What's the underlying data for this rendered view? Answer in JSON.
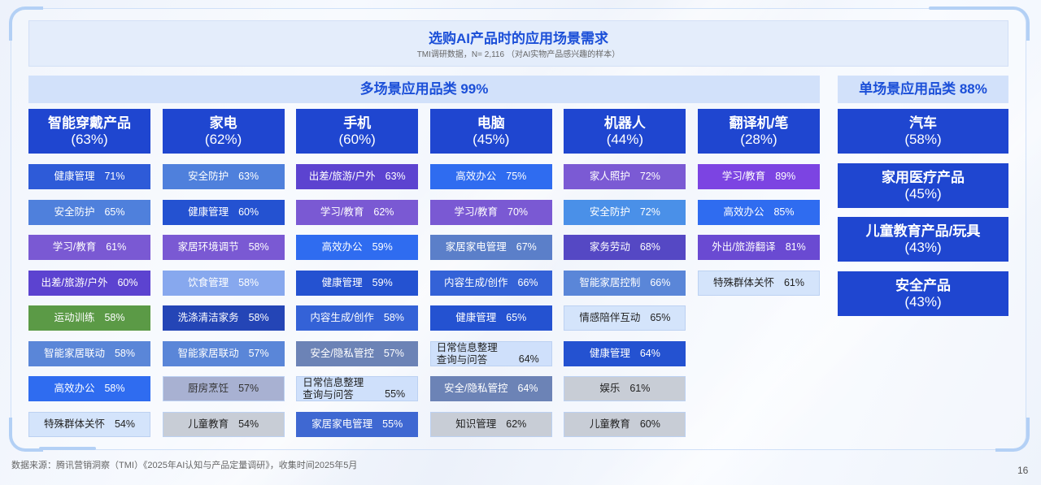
{
  "title": "选购AI产品时的应用场景需求",
  "subtitle": "TMI调研数据，N= 2,116 （对AI实物产品感兴趣的样本）",
  "multi": {
    "header": "多场景应用品类 99%",
    "columns": [
      {
        "name": "智能穿戴产品",
        "pct": "(63%)",
        "items": [
          {
            "label": "健康管理",
            "value": "71%",
            "bg": "#2e5bd8"
          },
          {
            "label": "安全防护",
            "value": "65%",
            "bg": "#4f80dc"
          },
          {
            "label": "学习/教育",
            "value": "61%",
            "bg": "#7a59d3"
          },
          {
            "label": "出差/旅游/户外",
            "value": "60%",
            "bg": "#5c43d0"
          },
          {
            "label": "运动训练",
            "value": "58%",
            "bg": "#5b9a46"
          },
          {
            "label": "智能家居联动",
            "value": "58%",
            "bg": "#5a86d8"
          },
          {
            "label": "高效办公",
            "value": "58%",
            "bg": "#2f6cf0"
          },
          {
            "label": "特殊群体关怀",
            "value": "54%",
            "bg": "#d4e4fb",
            "fg": "#222222"
          }
        ]
      },
      {
        "name": "家电",
        "pct": "(62%)",
        "items": [
          {
            "label": "安全防护",
            "value": "63%",
            "bg": "#4f80dc"
          },
          {
            "label": "健康管理",
            "value": "60%",
            "bg": "#2452d1"
          },
          {
            "label": "家居环境调节",
            "value": "58%",
            "bg": "#7a59d3"
          },
          {
            "label": "饮食管理",
            "value": "58%",
            "bg": "#87a8ee"
          },
          {
            "label": "洗涤清洁家务",
            "value": "58%",
            "bg": "#2445b6"
          },
          {
            "label": "智能家居联动",
            "value": "57%",
            "bg": "#5a86d8"
          },
          {
            "label": "厨房烹饪",
            "value": "57%",
            "bg": "#a8b1d2",
            "fg": "#333333"
          },
          {
            "label": "儿童教育",
            "value": "54%",
            "bg": "#c8cdd6",
            "fg": "#222222"
          }
        ]
      },
      {
        "name": "手机",
        "pct": "(60%)",
        "items": [
          {
            "label": "出差/旅游/户外",
            "value": "63%",
            "bg": "#5c43d0"
          },
          {
            "label": "学习/教育",
            "value": "62%",
            "bg": "#7a59d3"
          },
          {
            "label": "高效办公",
            "value": "59%",
            "bg": "#2f6cf0"
          },
          {
            "label": "健康管理",
            "value": "59%",
            "bg": "#2452d1"
          },
          {
            "label": "内容生成/创作",
            "value": "58%",
            "bg": "#3462d7"
          },
          {
            "label": "安全/隐私管控",
            "value": "57%",
            "bg": "#6c83b6"
          },
          {
            "label": "日常信息整理\n查询与问答",
            "value": "55%",
            "bg": "#cfe0fb",
            "fg": "#222222"
          },
          {
            "label": "家居家电管理",
            "value": "55%",
            "bg": "#3f68d2"
          }
        ]
      },
      {
        "name": "电脑",
        "pct": "(45%)",
        "items": [
          {
            "label": "高效办公",
            "value": "75%",
            "bg": "#2f6cf0"
          },
          {
            "label": "学习/教育",
            "value": "70%",
            "bg": "#7a59d3"
          },
          {
            "label": "家居家电管理",
            "value": "67%",
            "bg": "#5b7fc9"
          },
          {
            "label": "内容生成/创作",
            "value": "66%",
            "bg": "#3462d7"
          },
          {
            "label": "健康管理",
            "value": "65%",
            "bg": "#2452d1"
          },
          {
            "label": "日常信息整理\n查询与问答",
            "value": "64%",
            "bg": "#cfe0fb",
            "fg": "#222222"
          },
          {
            "label": "安全/隐私管控",
            "value": "64%",
            "bg": "#6c83b6"
          },
          {
            "label": "知识管理",
            "value": "62%",
            "bg": "#c8cdd6",
            "fg": "#222222"
          }
        ]
      },
      {
        "name": "机器人",
        "pct": "(44%)",
        "items": [
          {
            "label": "家人照护",
            "value": "72%",
            "bg": "#7b5ad4"
          },
          {
            "label": "安全防护",
            "value": "72%",
            "bg": "#4a90e8"
          },
          {
            "label": "家务劳动",
            "value": "68%",
            "bg": "#5548c4"
          },
          {
            "label": "智能家居控制",
            "value": "66%",
            "bg": "#5a86d8"
          },
          {
            "label": "情感陪伴互动",
            "value": "65%",
            "bg": "#d4e4fb",
            "fg": "#222222"
          },
          {
            "label": "健康管理",
            "value": "64%",
            "bg": "#2452d1"
          },
          {
            "label": "娱乐",
            "value": "61%",
            "bg": "#c8cdd6",
            "fg": "#222222"
          },
          {
            "label": "儿童教育",
            "value": "60%",
            "bg": "#c8cdd6",
            "fg": "#222222"
          }
        ]
      },
      {
        "name": "翻译机/笔",
        "pct": "(28%)",
        "items": [
          {
            "label": "学习/教育",
            "value": "89%",
            "bg": "#7c44e2"
          },
          {
            "label": "高效办公",
            "value": "85%",
            "bg": "#2f6cf0"
          },
          {
            "label": "外出/旅游翻译",
            "value": "81%",
            "bg": "#6a4ad2"
          },
          {
            "label": "特殊群体关怀",
            "value": "61%",
            "bg": "#d4e4fb",
            "fg": "#222222"
          }
        ]
      }
    ]
  },
  "single": {
    "header": "单场景应用品类 88%",
    "items": [
      {
        "name": "汽车",
        "pct": "(58%)"
      },
      {
        "name": "家用医疗产品",
        "pct": "(45%)"
      },
      {
        "name": "儿童教育产品/玩具",
        "pct": "(43%)"
      },
      {
        "name": "安全产品",
        "pct": "(43%)"
      }
    ]
  },
  "colors": {
    "accent": "#1b4fd8",
    "category_bg": "#1f46d0",
    "section_bg": "#d2e1fa"
  },
  "footer": {
    "source": "数据来源：腾讯营销洞察（TMI）《2025年AI认知与产品定量调研》，收集时间2025年5月",
    "page": "16"
  }
}
